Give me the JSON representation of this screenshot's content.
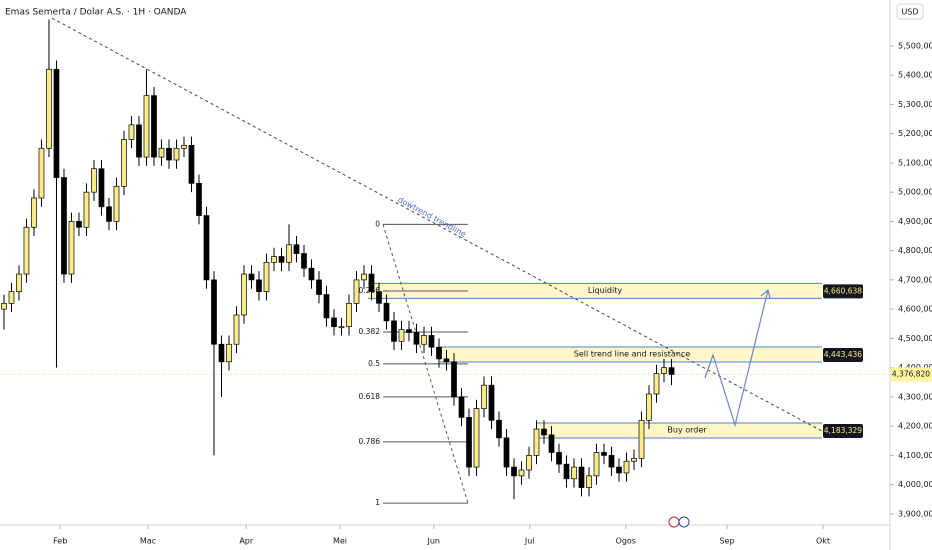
{
  "chart_data": {
    "type": "candlestick",
    "title": "Emas Semerta / Dolar A.S. · 1H · OANDA",
    "currency": "USD",
    "up_color": "#fbeb88",
    "down_color": "#000000",
    "grid": false,
    "xlim": [
      -0.53,
      118.13
    ],
    "xticks": [
      {
        "value": 7.5,
        "label": "Feb"
      },
      {
        "value": 19.2,
        "label": "Mac"
      },
      {
        "value": 32.3,
        "label": "Apr"
      },
      {
        "value": 44.8,
        "label": "Mei"
      },
      {
        "value": 57.3,
        "label": "Jun"
      },
      {
        "value": 70.1,
        "label": "Jul"
      },
      {
        "value": 82.9,
        "label": "Ogos"
      },
      {
        "value": 96.4,
        "label": "Sep"
      },
      {
        "value": 109.2,
        "label": "Okt"
      }
    ],
    "ylim": [
      3862000,
      5657000
    ],
    "yticks": [
      {
        "value": 5500000,
        "label": "5,500,000"
      },
      {
        "value": 5400000,
        "label": "5,400,000"
      },
      {
        "value": 5300000,
        "label": "5,300,000"
      },
      {
        "value": 5200000,
        "label": "5,200,000"
      },
      {
        "value": 5100000,
        "label": "5,100,000"
      },
      {
        "value": 5000000,
        "label": "5,000,000"
      },
      {
        "value": 4900000,
        "label": "4,900,000"
      },
      {
        "value": 4800000,
        "label": "4,800,000"
      },
      {
        "value": 4700000,
        "label": "4,700,000"
      },
      {
        "value": 4600000,
        "label": "4,600,000"
      },
      {
        "value": 4500000,
        "label": "4,500,000"
      },
      {
        "value": 4400000,
        "label": "4,400,000"
      },
      {
        "value": 4300000,
        "label": "4,300,000"
      },
      {
        "value": 4200000,
        "label": "4,200,000"
      },
      {
        "value": 4100000,
        "label": "4,100,000"
      },
      {
        "value": 4000000,
        "label": "4,000,000"
      },
      {
        "value": 3900000,
        "label": "3,900,000"
      }
    ],
    "open": [
      4600000,
      4620000,
      4660000,
      4720000,
      4880000,
      4980000,
      5150000,
      5420000,
      5050000,
      4720000,
      4900000,
      4880000,
      5000000,
      5080000,
      4950000,
      4900000,
      5020000,
      5180000,
      5230000,
      5120000,
      5330000,
      5120000,
      5150000,
      5110000,
      5150000,
      5160000,
      5030000,
      4920000,
      4700000,
      4480000,
      4420000,
      4480000,
      4580000,
      4720000,
      4700000,
      4660000,
      4760000,
      4780000,
      4760000,
      4820000,
      4790000,
      4740000,
      4700000,
      4650000,
      4570000,
      4540000,
      4540000,
      4620000,
      4700000,
      4720000,
      4660000,
      4620000,
      4560000,
      4490000,
      4530000,
      4520000,
      4480000,
      4510000,
      4470000,
      4430000,
      4420000,
      4300000,
      4230000,
      4060000,
      4260000,
      4340000,
      4220000,
      4160000,
      4060000,
      4030000,
      4050000,
      4100000,
      4190000,
      4170000,
      4110000,
      4070000,
      4020000,
      4060000,
      3990000,
      4030000,
      4110000,
      4100000,
      4060000,
      4040000,
      4080000,
      4090000,
      4220000,
      4310000,
      4380000,
      4400000
    ],
    "high": [
      4650000,
      4690000,
      4750000,
      4910000,
      5010000,
      5180000,
      5590000,
      5450000,
      5080000,
      4930000,
      4930000,
      5030000,
      5110000,
      5110000,
      4980000,
      5050000,
      5210000,
      5260000,
      5260000,
      5420000,
      5360000,
      5180000,
      5180000,
      5180000,
      5190000,
      5190000,
      5060000,
      4950000,
      4730000,
      4510000,
      4510000,
      4610000,
      4750000,
      4750000,
      4730000,
      4790000,
      4810000,
      4810000,
      4890000,
      4850000,
      4820000,
      4770000,
      4730000,
      4680000,
      4600000,
      4570000,
      4650000,
      4730000,
      4750000,
      4750000,
      4690000,
      4650000,
      4590000,
      4560000,
      4560000,
      4550000,
      4540000,
      4540000,
      4500000,
      4460000,
      4450000,
      4330000,
      4260000,
      4290000,
      4370000,
      4370000,
      4250000,
      4190000,
      4090000,
      4080000,
      4130000,
      4220000,
      4220000,
      4200000,
      4140000,
      4100000,
      4090000,
      4090000,
      4060000,
      4140000,
      4140000,
      4130000,
      4090000,
      4110000,
      4120000,
      4250000,
      4340000,
      4410000,
      4430000,
      4430000
    ],
    "low": [
      4530000,
      4590000,
      4630000,
      4690000,
      4850000,
      4950000,
      5120000,
      4400000,
      4690000,
      4690000,
      4850000,
      4850000,
      4970000,
      4920000,
      4870000,
      4870000,
      4990000,
      5150000,
      5090000,
      5090000,
      5090000,
      5090000,
      5080000,
      5080000,
      5120000,
      5000000,
      4890000,
      4670000,
      4100000,
      4300000,
      4390000,
      4450000,
      4550000,
      4670000,
      4630000,
      4630000,
      4730000,
      4730000,
      4730000,
      4760000,
      4710000,
      4670000,
      4620000,
      4540000,
      4510000,
      4510000,
      4510000,
      4590000,
      4670000,
      4630000,
      4590000,
      4530000,
      4460000,
      4460000,
      4490000,
      4450000,
      4450000,
      4440000,
      4400000,
      4390000,
      4270000,
      4200000,
      4030000,
      4030000,
      4230000,
      4190000,
      4130000,
      4030000,
      3950000,
      4000000,
      4020000,
      4070000,
      4140000,
      4080000,
      4040000,
      3990000,
      3990000,
      3960000,
      3960000,
      4000000,
      4070000,
      4030000,
      4010000,
      4010000,
      4050000,
      4060000,
      4190000,
      4280000,
      4350000,
      4340000
    ],
    "close": [
      4620000,
      4660000,
      4720000,
      4880000,
      4980000,
      5150000,
      5420000,
      5050000,
      4720000,
      4900000,
      4880000,
      5000000,
      5080000,
      4950000,
      4900000,
      5020000,
      5180000,
      5230000,
      5120000,
      5330000,
      5120000,
      5150000,
      5110000,
      5150000,
      5160000,
      5030000,
      4920000,
      4700000,
      4480000,
      4420000,
      4480000,
      4580000,
      4720000,
      4700000,
      4660000,
      4760000,
      4780000,
      4760000,
      4820000,
      4790000,
      4740000,
      4700000,
      4650000,
      4570000,
      4540000,
      4540000,
      4620000,
      4700000,
      4720000,
      4660000,
      4620000,
      4560000,
      4490000,
      4530000,
      4520000,
      4480000,
      4510000,
      4470000,
      4430000,
      4420000,
      4300000,
      4230000,
      4060000,
      4260000,
      4340000,
      4220000,
      4160000,
      4060000,
      4030000,
      4050000,
      4100000,
      4190000,
      4170000,
      4110000,
      4070000,
      4020000,
      4060000,
      3990000,
      4030000,
      4110000,
      4100000,
      4060000,
      4040000,
      4080000,
      4090000,
      4220000,
      4310000,
      4380000,
      4400000,
      4376820
    ],
    "last_price": {
      "value": 4376820,
      "label": "4,376,820"
    },
    "zones": [
      {
        "text": "Liquidity",
        "price": 4660638,
        "label": "4,660,638"
      },
      {
        "text": "Sell trend line and resistance",
        "price": 4443436,
        "label": "4,443,436"
      },
      {
        "text": "Buy order",
        "price": 4183329,
        "label": "4,183,329"
      }
    ],
    "fib_levels": [
      {
        "label": "0",
        "price": 4890000
      },
      {
        "label": "0.236",
        "price": 4662000
      },
      {
        "label": "0.382",
        "price": 4522000
      },
      {
        "label": "0.5",
        "price": 4413000
      },
      {
        "label": "0.618",
        "price": 4300000
      },
      {
        "label": "0.786",
        "price": 4146000
      },
      {
        "label": "1",
        "price": 3937000
      }
    ],
    "trendline": {
      "label": "dowtrend trendline",
      "start": 5595000,
      "end": 4183000
    }
  }
}
